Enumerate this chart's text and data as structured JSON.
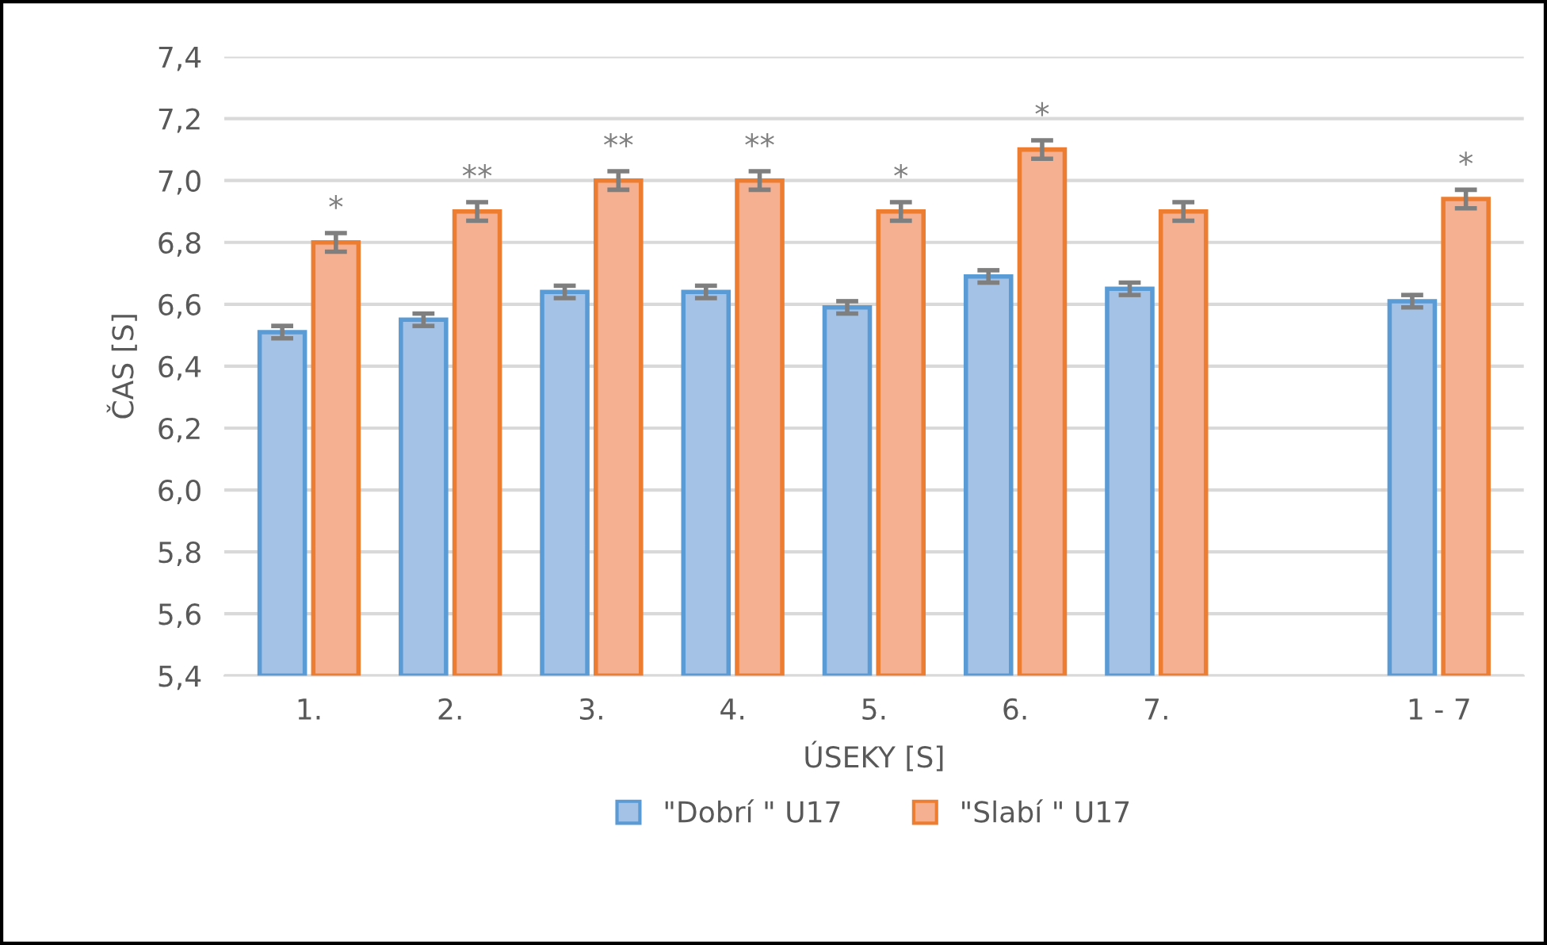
{
  "chart_data": {
    "type": "bar",
    "xlabel": "ÚSEKY [S]",
    "ylabel": "ČAS [S]",
    "categories": [
      "1.",
      "2.",
      "3.",
      "4.",
      "5.",
      "6.",
      "7.",
      null,
      "1 - 7"
    ],
    "series": [
      {
        "name": "\"Dobrí \" U17",
        "color": "#a4c2e6",
        "values": [
          6.51,
          6.55,
          6.64,
          6.64,
          6.59,
          6.69,
          6.65,
          null,
          6.61
        ],
        "errors": [
          0.02,
          0.02,
          0.02,
          0.02,
          0.02,
          0.02,
          0.02,
          null,
          0.02
        ]
      },
      {
        "name": "\"Slabí \" U17",
        "color": "#f5b092",
        "values": [
          6.8,
          6.9,
          7.0,
          7.0,
          6.9,
          7.1,
          6.9,
          null,
          6.94
        ],
        "errors": [
          0.03,
          0.03,
          0.03,
          0.03,
          0.03,
          0.03,
          0.03,
          null,
          0.03
        ],
        "value_labels": [
          "*",
          "**",
          "**",
          "**",
          "*",
          "*",
          null,
          null,
          "*"
        ]
      }
    ],
    "ylim": [
      5.4,
      7.4
    ],
    "yticks": [
      {
        "value": 5.4,
        "label": "5,4"
      },
      {
        "value": 5.6,
        "label": "5,6"
      },
      {
        "value": 5.8,
        "label": "5,8"
      },
      {
        "value": 6.0,
        "label": "6,0"
      },
      {
        "value": 6.2,
        "label": "6,2"
      },
      {
        "value": 6.4,
        "label": "6,4"
      },
      {
        "value": 6.6,
        "label": "6,6"
      },
      {
        "value": 6.8,
        "label": "6,8"
      },
      {
        "value": 7.0,
        "label": "7,0"
      },
      {
        "value": 7.2,
        "label": "7,2"
      },
      {
        "value": 7.4,
        "label": "7,4"
      }
    ],
    "grid": "y",
    "legend": "bottom"
  }
}
